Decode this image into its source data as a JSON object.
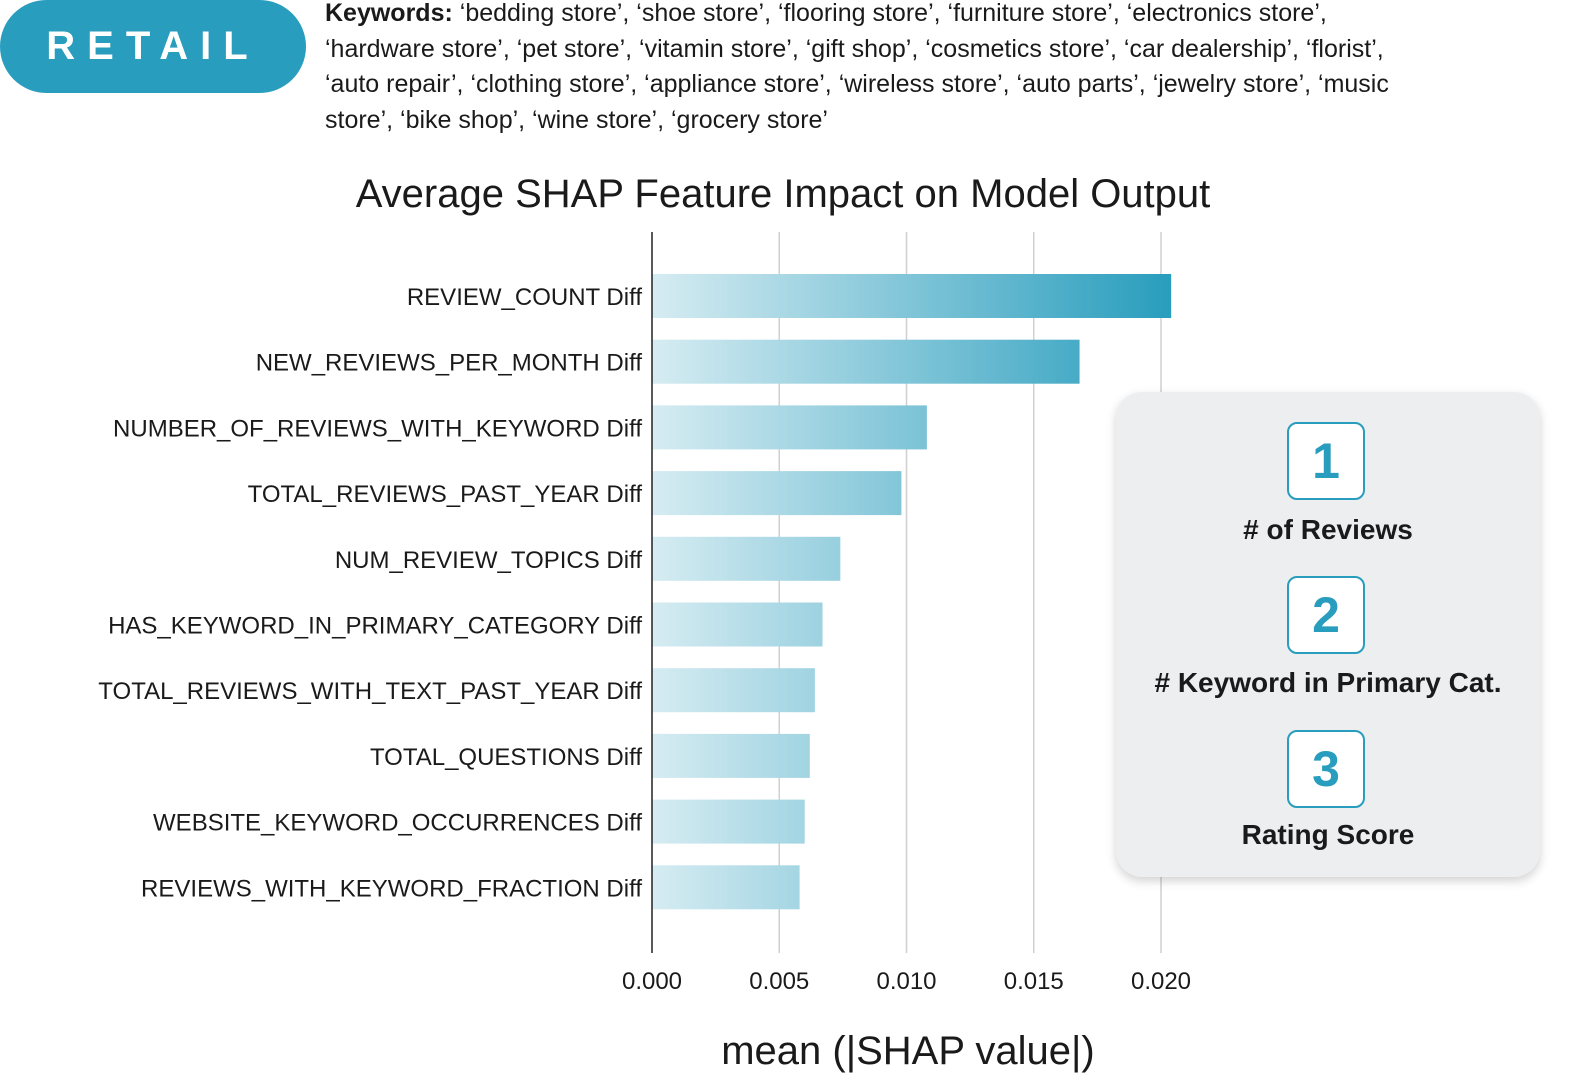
{
  "badge": "RETAIL",
  "keywords": {
    "label": "Keywords:",
    "text": " ‘bedding store’, ‘shoe store’, ‘flooring store’, ‘furniture store’, ‘electronics store’, ‘hardware store’, ‘pet store’, ‘vitamin store’, ‘gift shop’, ‘cosmetics store’, ‘car dealership’, ‘florist’, ‘auto repair’, ‘clothing store’, ‘appliance store’, ‘wireless store’, ‘auto parts’, ‘jewelry store’, ‘music store’, ‘bike shop’, ‘wine store’, ‘grocery store’"
  },
  "legend": {
    "items": [
      {
        "rank": "1",
        "label": "# of Reviews"
      },
      {
        "rank": "2",
        "label": "# Keyword in Primary Cat."
      },
      {
        "rank": "3",
        "label": "Rating Score"
      }
    ]
  },
  "colors": {
    "accent": "#289dbd",
    "bar_light": "#d6ecf2",
    "grid": "#d0d0d0"
  },
  "chart_data": {
    "type": "bar",
    "orientation": "horizontal",
    "title": "Average SHAP Feature Impact on Model Output",
    "xlabel": "mean (|SHAP value|)",
    "ylabel": "",
    "xlim": [
      0,
      0.0215
    ],
    "grid": true,
    "xticks": [
      "0.000",
      "0.005",
      "0.010",
      "0.015",
      "0.020"
    ],
    "categories": [
      "REVIEW_COUNT Diff",
      "NEW_REVIEWS_PER_MONTH Diff",
      "NUMBER_OF_REVIEWS_WITH_KEYWORD Diff",
      "TOTAL_REVIEWS_PAST_YEAR Diff",
      "NUM_REVIEW_TOPICS Diff",
      "HAS_KEYWORD_IN_PRIMARY_CATEGORY Diff",
      "TOTAL_REVIEWS_WITH_TEXT_PAST_YEAR Diff",
      "TOTAL_QUESTIONS Diff",
      "WEBSITE_KEYWORD_OCCURRENCES Diff",
      "REVIEWS_WITH_KEYWORD_FRACTION Diff"
    ],
    "values": [
      0.0204,
      0.0168,
      0.0108,
      0.0098,
      0.0074,
      0.0067,
      0.0064,
      0.0062,
      0.006,
      0.0058
    ]
  }
}
